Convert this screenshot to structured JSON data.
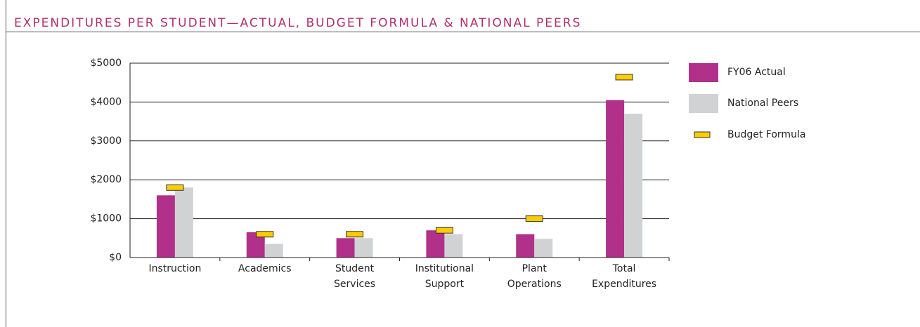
{
  "chart_data": {
    "type": "bar",
    "title": "EXPENDITURES PER STUDENT—ACTUAL, BUDGET FORMULA & NATIONAL PEERS",
    "categories": [
      "Instruction",
      "Academics",
      "Student Services",
      "Institutional Support",
      "Plant Operations",
      "Total Expenditures"
    ],
    "series": [
      {
        "name": "FY06 Actual",
        "color": "#b0308a",
        "values": [
          1600,
          650,
          500,
          700,
          600,
          4050
        ]
      },
      {
        "name": "National Peers",
        "color": "#d1d2d4",
        "values": [
          1800,
          350,
          500,
          600,
          480,
          3700
        ]
      },
      {
        "name": "Budget Formula",
        "color": "#ffcc00",
        "marker": "dash",
        "values": [
          1800,
          600,
          600,
          700,
          1000,
          4640
        ]
      }
    ],
    "ylim": [
      0,
      5000
    ],
    "yticks": [
      {
        "value": 0,
        "label": "$0"
      },
      {
        "value": 1000,
        "label": "$1000"
      },
      {
        "value": 2000,
        "label": "$2000"
      },
      {
        "value": 3000,
        "label": "$3000"
      },
      {
        "value": 4000,
        "label": "$4000"
      },
      {
        "value": 5000,
        "label": "$5000"
      }
    ],
    "grid": true,
    "legend": "right"
  }
}
